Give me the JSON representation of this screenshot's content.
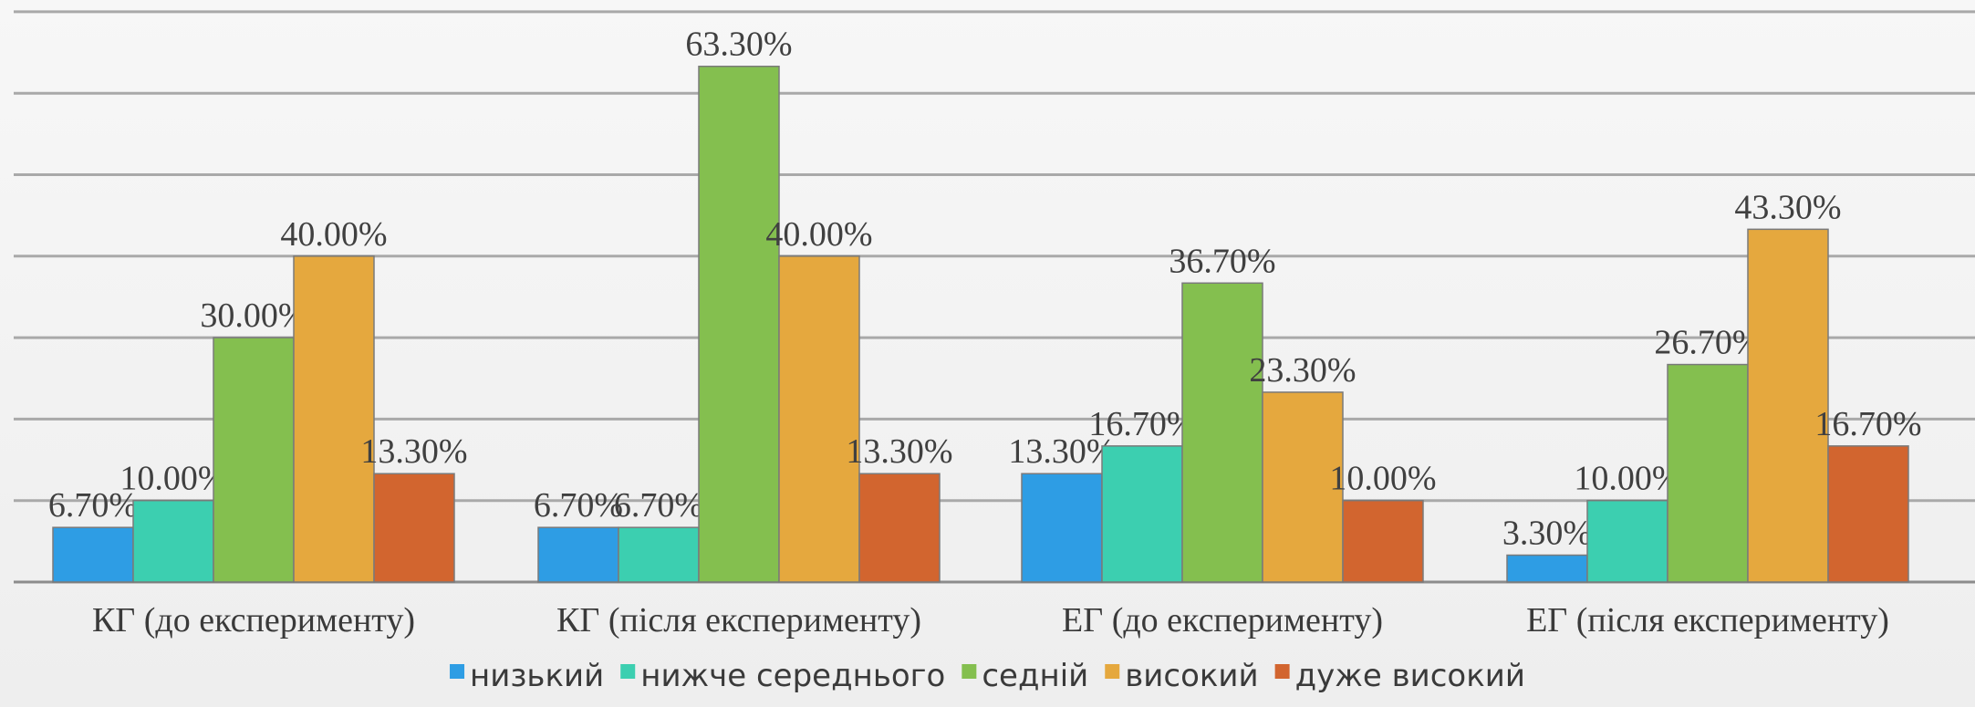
{
  "chart_data": {
    "type": "bar",
    "categories": [
      "КГ (до експерименту)",
      "КГ (після експерименту)",
      "ЕГ (до експерименту)",
      "ЕГ (після експерименту)"
    ],
    "series": [
      {
        "name": "низький",
        "color": "#2e9de4",
        "values": [
          6.7,
          6.7,
          13.3,
          3.3
        ],
        "labels": [
          "6.70%",
          "6.70%",
          "13.30%",
          "3.30%"
        ]
      },
      {
        "name": "нижче середнього",
        "color": "#3ccfb0",
        "values": [
          10.0,
          6.7,
          16.7,
          10.0
        ],
        "labels": [
          "10.00%",
          "6.70%",
          "16.70%",
          "10.00%"
        ]
      },
      {
        "name": "седній",
        "color": "#84bf4f",
        "values": [
          30.0,
          63.3,
          36.7,
          26.7
        ],
        "labels": [
          "30.00%",
          "63.30%",
          "36.70%",
          "26.70%"
        ]
      },
      {
        "name": "високий",
        "color": "#e5a83e",
        "values": [
          40.0,
          40.0,
          23.3,
          43.3
        ],
        "labels": [
          "40.00%",
          "40.00%",
          "23.30%",
          "43.30%"
        ]
      },
      {
        "name": "дуже високий",
        "color": "#d2652f",
        "values": [
          13.3,
          13.3,
          10.0,
          16.7
        ],
        "labels": [
          "13.30%",
          "13.30%",
          "10.00%",
          "16.70%"
        ]
      }
    ],
    "ylim": [
      0,
      70
    ],
    "grid": true,
    "legend": "bottom-center",
    "title": "",
    "xlabel": "",
    "ylabel": ""
  }
}
